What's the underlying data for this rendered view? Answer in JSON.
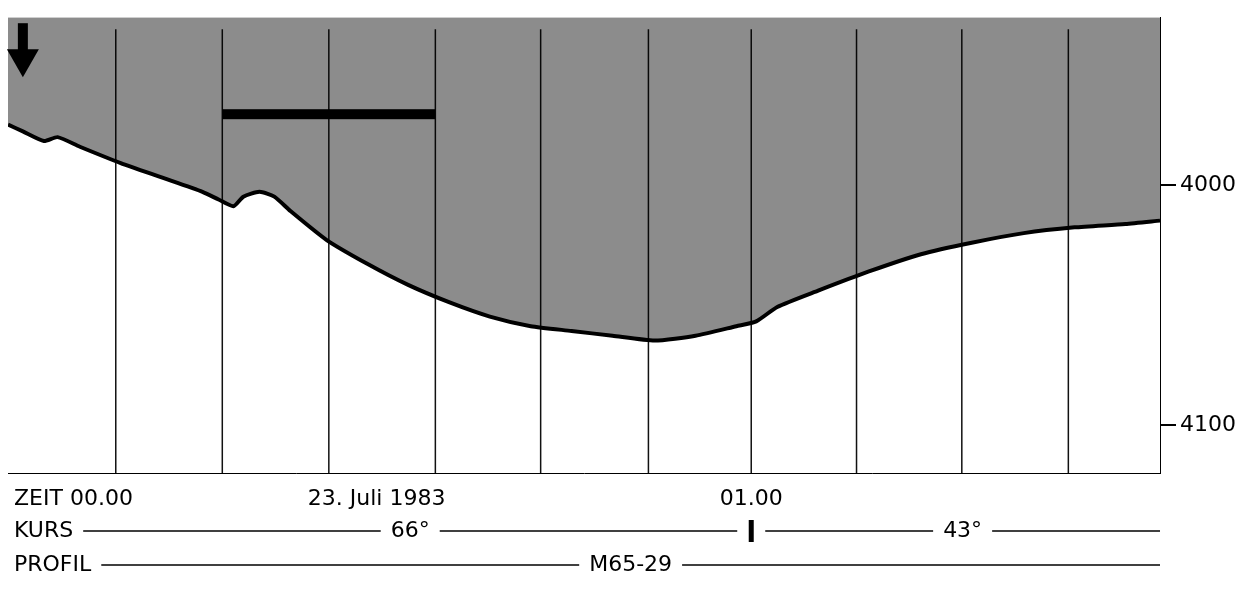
{
  "chart_data": {
    "type": "line",
    "x": [
      0,
      1.2,
      2.9,
      4.0,
      5.8,
      9.1,
      12.4,
      15.7,
      17.0,
      18.2,
      19.0,
      20.3,
      21.5,
      22.8,
      25.7,
      29.0,
      32.3,
      35.6,
      38.9,
      42.2,
      45.5,
      48.8,
      52.2,
      55.5,
      58.8,
      60.4,
      62.1,
      65.4,
      69.5,
      73.7,
      77.8,
      82.0,
      86.1,
      90.2,
      93.0
    ],
    "values": [
      3974.8,
      3977.6,
      3981.6,
      3980.0,
      3984.0,
      3990.8,
      3996.8,
      4002.8,
      4006.0,
      4008.8,
      4004.8,
      4002.8,
      4004.8,
      4010.8,
      4022.8,
      4032.8,
      4041.6,
      4048.8,
      4054.8,
      4058.8,
      4060.8,
      4062.8,
      4064.8,
      4062.8,
      4058.8,
      4056.8,
      4050.8,
      4044.0,
      4036.0,
      4028.8,
      4024.0,
      4020.0,
      4017.6,
      4016.2,
      4014.8
    ],
    "color": "#000000",
    "xlim": [
      0,
      93
    ],
    "ylim": [
      3930,
      4120
    ],
    "yticks": [
      4000,
      4100
    ],
    "tick_labels": "y",
    "grid": false,
    "time_marks": [
      8.7,
      17.3,
      25.9,
      34.5,
      43.0,
      51.7,
      60.0,
      68.5,
      77.0,
      85.6
    ],
    "scale_bar": [
      17.3,
      34.5
    ],
    "arrow": 1.2,
    "footer": {
      "zeit_label": "ZEIT 00.00",
      "date": "23. Juli 1983",
      "time_label": "01.00",
      "time_label_at": 60,
      "kurs_label": "KURS",
      "kurs": [
        {
          "label": "66°",
          "from": 0,
          "to": 60
        },
        {
          "label": "43°",
          "from": 60,
          "to": 93
        }
      ],
      "profil_label": "PROFIL",
      "profil": "M65-29"
    }
  }
}
